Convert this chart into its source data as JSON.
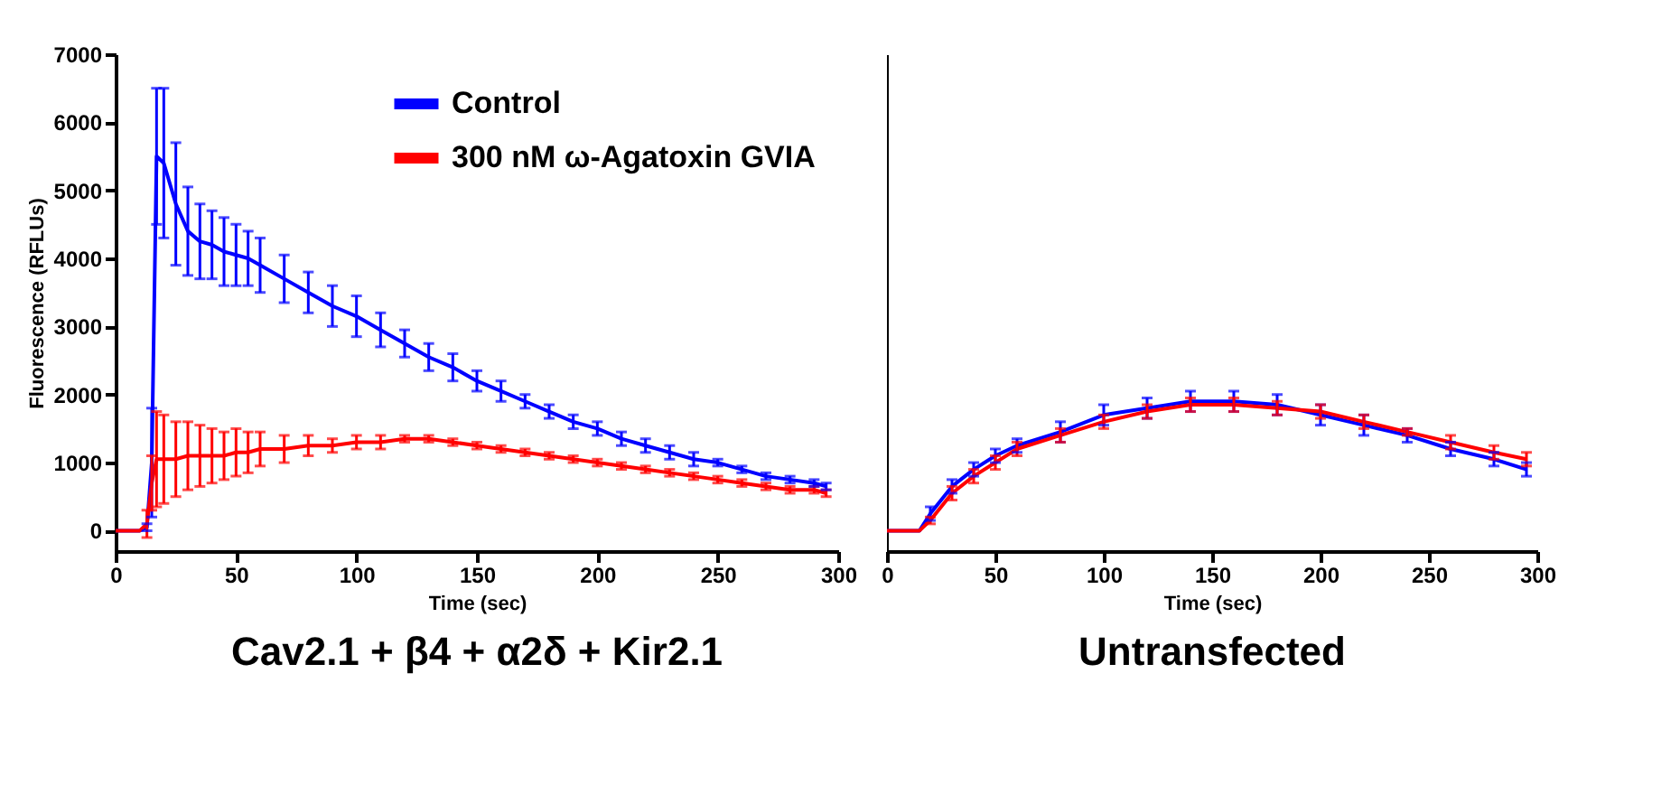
{
  "chart_data": [
    {
      "type": "line",
      "title": "Cav2.1 + β4 + α2δ + Kir2.1",
      "xlabel": "Time (sec)",
      "ylabel": "Fluorescence (RFLUs)",
      "xlim": [
        0,
        300
      ],
      "xticks": [
        0,
        50,
        100,
        150,
        200,
        250,
        300
      ],
      "ylim": [
        -300,
        7000
      ],
      "yticks": [
        0,
        1000,
        2000,
        3000,
        4000,
        5000,
        6000,
        7000
      ],
      "legend": "top right",
      "marker": "none",
      "line_style": "solid",
      "series": [
        {
          "name": "Control",
          "color": "#0000ff",
          "x": [
            0,
            5,
            10,
            13,
            15,
            17,
            20,
            25,
            30,
            35,
            40,
            45,
            50,
            55,
            60,
            70,
            80,
            90,
            100,
            110,
            120,
            130,
            140,
            150,
            160,
            170,
            180,
            190,
            200,
            210,
            220,
            230,
            240,
            250,
            260,
            270,
            280,
            290,
            295
          ],
          "values": [
            0,
            0,
            0,
            50,
            1000,
            5500,
            5400,
            4800,
            4400,
            4250,
            4200,
            4100,
            4050,
            4000,
            3900,
            3700,
            3500,
            3300,
            3150,
            2950,
            2750,
            2550,
            2400,
            2200,
            2050,
            1900,
            1750,
            1600,
            1500,
            1350,
            1250,
            1150,
            1050,
            1000,
            900,
            800,
            750,
            700,
            650
          ],
          "errors": [
            null,
            null,
            null,
            50,
            800,
            1000,
            1100,
            900,
            650,
            550,
            500,
            500,
            450,
            400,
            400,
            350,
            300,
            300,
            300,
            250,
            200,
            200,
            200,
            150,
            150,
            100,
            100,
            100,
            100,
            100,
            100,
            100,
            100,
            50,
            50,
            50,
            50,
            50,
            50
          ]
        },
        {
          "name": "300 nM ω-Agatoxin GVIA",
          "color": "#ff0000",
          "x": [
            0,
            5,
            10,
            13,
            15,
            17,
            20,
            25,
            30,
            35,
            40,
            45,
            50,
            55,
            60,
            70,
            80,
            90,
            100,
            110,
            120,
            130,
            140,
            150,
            160,
            170,
            180,
            190,
            200,
            210,
            220,
            230,
            240,
            250,
            260,
            270,
            280,
            290,
            295
          ],
          "values": [
            0,
            0,
            0,
            100,
            700,
            1050,
            1050,
            1050,
            1100,
            1100,
            1100,
            1100,
            1150,
            1150,
            1200,
            1200,
            1250,
            1250,
            1300,
            1300,
            1350,
            1350,
            1300,
            1250,
            1200,
            1150,
            1100,
            1050,
            1000,
            950,
            900,
            850,
            800,
            750,
            700,
            650,
            600,
            600,
            550
          ],
          "errors": [
            null,
            null,
            null,
            200,
            400,
            700,
            650,
            550,
            500,
            450,
            400,
            350,
            350,
            300,
            250,
            200,
            150,
            100,
            100,
            100,
            50,
            50,
            50,
            50,
            50,
            50,
            50,
            50,
            50,
            50,
            50,
            50,
            50,
            50,
            50,
            50,
            50,
            50,
            50
          ]
        }
      ]
    },
    {
      "type": "line",
      "title": "Untransfected",
      "xlabel": "Time (sec)",
      "xlim": [
        0,
        300
      ],
      "xticks": [
        0,
        50,
        100,
        150,
        200,
        250,
        300
      ],
      "ylim": [
        -300,
        7000
      ],
      "tick_labels": "x",
      "marker": "none",
      "line_style": "solid",
      "series": [
        {
          "color": "#0000ff",
          "x": [
            0,
            5,
            10,
            15,
            20,
            30,
            40,
            50,
            60,
            80,
            100,
            120,
            140,
            160,
            180,
            200,
            220,
            240,
            260,
            280,
            295
          ],
          "values": [
            0,
            0,
            0,
            0,
            250,
            650,
            900,
            1100,
            1250,
            1450,
            1700,
            1800,
            1900,
            1900,
            1850,
            1700,
            1550,
            1400,
            1200,
            1050,
            900
          ],
          "errors": [
            null,
            null,
            null,
            null,
            100,
            100,
            100,
            100,
            100,
            150,
            150,
            150,
            150,
            150,
            150,
            150,
            150,
            100,
            100,
            100,
            100
          ]
        },
        {
          "color": "#ff0000",
          "x": [
            0,
            5,
            10,
            15,
            20,
            30,
            40,
            50,
            60,
            80,
            100,
            120,
            140,
            160,
            180,
            200,
            220,
            240,
            260,
            280,
            295
          ],
          "values": [
            0,
            0,
            0,
            0,
            150,
            550,
            800,
            1000,
            1200,
            1400,
            1600,
            1750,
            1850,
            1850,
            1800,
            1750,
            1600,
            1450,
            1300,
            1150,
            1050
          ],
          "errors": [
            null,
            null,
            null,
            null,
            50,
            100,
            100,
            100,
            100,
            100,
            100,
            100,
            100,
            100,
            100,
            100,
            100,
            50,
            100,
            100,
            100
          ]
        }
      ]
    }
  ]
}
